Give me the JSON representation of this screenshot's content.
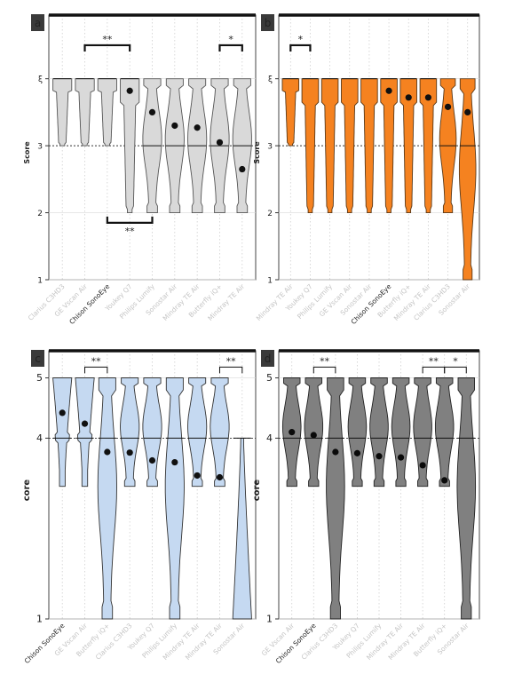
{
  "panels": [
    {
      "letter": "a",
      "ylabel": "Score",
      "yticks": [
        "1",
        "2",
        "3",
        "ξ"
      ],
      "tick_values": [
        1,
        2,
        3,
        4
      ],
      "ylim": [
        1,
        4.95
      ],
      "fill": "#d9d9d9",
      "stroke": "#555555",
      "dot_color": "#111111",
      "labels_faint": true,
      "highlight_label": 2,
      "categories": [
        "Clarius C3HD3",
        "GE Vscan Air",
        "Chison SonoEye",
        "Youkey Q7",
        "Philips Lumify",
        "Sonostar Air",
        "Mindray TE Air",
        "Butterfly iQ+",
        "Mindray TE Air"
      ],
      "medians": [
        4,
        4,
        4,
        4,
        3,
        3,
        3,
        3,
        3
      ],
      "means": [
        4,
        4,
        4,
        3.82,
        3.5,
        3.3,
        3.27,
        3.05,
        2.65
      ],
      "ranges": [
        [
          3,
          4
        ],
        [
          3,
          4
        ],
        [
          3,
          4
        ],
        [
          2,
          4
        ],
        [
          2,
          4
        ],
        [
          2,
          4
        ],
        [
          2,
          4
        ],
        [
          2,
          4
        ],
        [
          2,
          4
        ]
      ],
      "shape": [
        "top",
        "top",
        "top",
        "top",
        "mid",
        "mid",
        "mid",
        "mid",
        "mid"
      ],
      "show_mean": [
        false,
        false,
        false,
        true,
        true,
        true,
        true,
        true,
        true
      ],
      "brackets": [
        {
          "from": 1,
          "to": 3,
          "y": 4.5,
          "text": "**",
          "above": true
        },
        {
          "from": 7,
          "to": 8,
          "y": 4.5,
          "text": "*",
          "above": true
        },
        {
          "from": 2,
          "to": 4,
          "y": 1.85,
          "text": "**",
          "above": false
        }
      ]
    },
    {
      "letter": "b",
      "ylabel": "Score",
      "yticks": [
        "1",
        "2",
        "3",
        "ξ"
      ],
      "tick_values": [
        1,
        2,
        3,
        4
      ],
      "ylim": [
        1,
        4.95
      ],
      "fill": "#f58220",
      "stroke": "#5a3a1a",
      "dot_color": "#111111",
      "labels_faint": true,
      "highlight_label": 5,
      "categories": [
        "Mindray TE Air",
        "Youkey Q7",
        "Philips Lumify",
        "GE Vscan Air",
        "Sonostar Air",
        "Chison SonoEye",
        "Butterfly iQ+",
        "Mindray TE Air",
        "Clarius C3HD3",
        "Sonostar Air"
      ],
      "medians": [
        4,
        4,
        4,
        4,
        4,
        4,
        4,
        4,
        3,
        3
      ],
      "means": [
        4,
        4,
        4,
        4,
        4,
        3.82,
        3.72,
        3.72,
        3.58,
        3.5
      ],
      "ranges": [
        [
          3,
          4
        ],
        [
          2,
          4
        ],
        [
          2,
          4
        ],
        [
          2,
          4
        ],
        [
          2,
          4
        ],
        [
          2,
          4
        ],
        [
          2,
          4
        ],
        [
          2,
          4
        ],
        [
          2,
          4
        ],
        [
          1,
          4
        ]
      ],
      "shape": [
        "top",
        "top",
        "top",
        "top",
        "top",
        "top",
        "top",
        "top",
        "mid",
        "mid"
      ],
      "show_mean": [
        false,
        false,
        false,
        false,
        false,
        true,
        true,
        true,
        true,
        true
      ],
      "brackets": [
        {
          "from": 0,
          "to": 1,
          "y": 4.5,
          "text": "*",
          "above": true
        }
      ]
    },
    {
      "letter": "c",
      "ylabel": "core",
      "yticks": [
        "1",
        "4",
        "5"
      ],
      "tick_values": [
        1,
        4,
        5
      ],
      "ylim": [
        1,
        5.45
      ],
      "fill": "#c5d9f1",
      "stroke": "#333333",
      "dot_color": "#111111",
      "labels_faint": true,
      "highlight_label": 0,
      "categories": [
        "Chison SonoEye",
        "GE Vscan Air",
        "Butterfly iQ+",
        "Clarius C3HD3",
        "Youkey Q7",
        "Philips Lumify",
        "Mindray TE Air",
        "Mindray TE Air",
        "Sonostar Air"
      ],
      "medians": [
        4,
        4,
        4,
        4,
        4,
        4,
        4,
        4,
        4
      ],
      "means": [
        4.42,
        4.24,
        3.77,
        3.76,
        3.63,
        3.6,
        3.38,
        3.35,
        3.0
      ],
      "ranges": [
        [
          3.2,
          5
        ],
        [
          3.2,
          5
        ],
        [
          1,
          5
        ],
        [
          3.2,
          5
        ],
        [
          3.2,
          5
        ],
        [
          1,
          5
        ],
        [
          3.2,
          5
        ],
        [
          3.2,
          5
        ],
        [
          1,
          4
        ]
      ],
      "shape": [
        "upper",
        "upper",
        "mid",
        "mid",
        "mid",
        "mid",
        "mid",
        "mid",
        "low"
      ],
      "show_mean": [
        true,
        true,
        true,
        true,
        true,
        true,
        true,
        true,
        false
      ],
      "brackets": [
        {
          "from": 1,
          "to": 2,
          "y": 5.18,
          "text": "**",
          "above": true
        },
        {
          "from": 7,
          "to": 8,
          "y": 5.18,
          "text": "**",
          "above": true
        }
      ]
    },
    {
      "letter": "d",
      "ylabel": "core",
      "yticks": [
        "1",
        "4",
        "5"
      ],
      "tick_values": [
        1,
        4,
        5
      ],
      "ylim": [
        1,
        5.45
      ],
      "fill": "#808080",
      "stroke": "#222222",
      "dot_color": "#0a0a0a",
      "labels_faint": true,
      "highlight_label": 1,
      "categories": [
        "GE Vscan Air",
        "Chison SonoEye",
        "Clarius C3HD3",
        "Youkey Q7",
        "Philips Lumify",
        "Mindray TE Air",
        "Mindray TE Air",
        "Butterfly iQ+",
        "Sonostar Air"
      ],
      "medians": [
        4,
        4,
        4,
        4,
        4,
        4,
        4,
        4,
        4
      ],
      "means": [
        4.1,
        4.05,
        3.77,
        3.75,
        3.7,
        3.68,
        3.55,
        3.3,
        3.0
      ],
      "ranges": [
        [
          3.2,
          5
        ],
        [
          3.2,
          5
        ],
        [
          1,
          5
        ],
        [
          3.2,
          5
        ],
        [
          3.2,
          5
        ],
        [
          3.2,
          5
        ],
        [
          3.2,
          5
        ],
        [
          3.2,
          5
        ],
        [
          1,
          5
        ]
      ],
      "shape": [
        "mid",
        "mid",
        "mid",
        "mid",
        "mid",
        "mid",
        "mid",
        "mid",
        "mid"
      ],
      "show_mean": [
        true,
        true,
        true,
        true,
        true,
        true,
        true,
        true,
        false
      ],
      "brackets": [
        {
          "from": 1,
          "to": 2,
          "y": 5.18,
          "text": "**",
          "above": true
        },
        {
          "from": 6,
          "to": 7,
          "y": 5.18,
          "text": "**",
          "above": true
        },
        {
          "from": 7,
          "to": 8,
          "y": 5.18,
          "text": "*",
          "above": true
        }
      ]
    }
  ],
  "chart_data": [
    {
      "type": "violin",
      "panel": "a",
      "ylabel": "Score",
      "categories": [
        "Clarius C3HD3",
        "GE Vscan Air",
        "Chison SonoEye",
        "Youkey Q7",
        "Philips Lumify",
        "Sonostar Air",
        "Mindray TE Air",
        "Butterfly iQ+",
        "Mindray TE Air"
      ],
      "means": [
        4,
        4,
        4,
        3.82,
        3.5,
        3.3,
        3.27,
        3.05,
        2.65
      ],
      "medians": [
        4,
        4,
        4,
        4,
        3,
        3,
        3,
        3,
        3
      ],
      "ylim": [
        1,
        4
      ],
      "significance": [
        "GE Vscan Air vs Youkey Q7: **",
        "Butterfly iQ+ vs Mindray TE Air: *",
        "Chison SonoEye vs Philips Lumify: **"
      ]
    },
    {
      "type": "violin",
      "panel": "b",
      "ylabel": "Score",
      "categories": [
        "Mindray TE Air",
        "Youkey Q7",
        "Philips Lumify",
        "GE Vscan Air",
        "Sonostar Air",
        "Chison SonoEye",
        "Butterfly iQ+",
        "Mindray TE Air",
        "Clarius C3HD3",
        "Sonostar Air"
      ],
      "means": [
        4,
        4,
        4,
        4,
        4,
        3.82,
        3.72,
        3.72,
        3.58,
        3.5
      ],
      "medians": [
        4,
        4,
        4,
        4,
        4,
        4,
        4,
        4,
        3,
        3
      ],
      "ylim": [
        1,
        4
      ],
      "significance": [
        "Mindray TE Air vs Youkey Q7: *"
      ]
    },
    {
      "type": "violin",
      "panel": "c",
      "ylabel": "core",
      "categories": [
        "Chison SonoEye",
        "GE Vscan Air",
        "Butterfly iQ+",
        "Clarius C3HD3",
        "Youkey Q7",
        "Philips Lumify",
        "Mindray TE Air",
        "Mindray TE Air",
        "Sonostar Air"
      ],
      "means": [
        4.42,
        4.24,
        3.77,
        3.76,
        3.63,
        3.6,
        3.38,
        3.35,
        3.0
      ],
      "medians": [
        4,
        4,
        4,
        4,
        4,
        4,
        4,
        4,
        4
      ],
      "ylim": [
        1,
        5
      ],
      "significance": [
        "GE Vscan Air vs Butterfly iQ+: **",
        "Mindray TE Air vs Sonostar Air: **"
      ]
    },
    {
      "type": "violin",
      "panel": "d",
      "ylabel": "core",
      "categories": [
        "GE Vscan Air",
        "Chison SonoEye",
        "Clarius C3HD3",
        "Youkey Q7",
        "Philips Lumify",
        "Mindray TE Air",
        "Mindray TE Air",
        "Butterfly iQ+",
        "Sonostar Air"
      ],
      "means": [
        4.1,
        4.05,
        3.77,
        3.75,
        3.7,
        3.68,
        3.55,
        3.3,
        3.0
      ],
      "medians": [
        4,
        4,
        4,
        4,
        4,
        4,
        4,
        4,
        4
      ],
      "ylim": [
        1,
        5
      ],
      "significance": [
        "Chison SonoEye vs Clarius C3HD3: **",
        "Mindray TE Air vs Butterfly iQ+: **",
        "Butterfly iQ+ vs Sonostar Air: *"
      ]
    }
  ]
}
